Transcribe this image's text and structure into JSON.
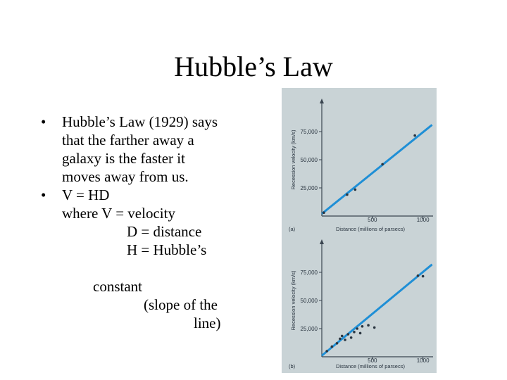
{
  "slide": {
    "title": "Hubble’s Law",
    "bullet1_lines": [
      "Hubble’s Law (1929) says",
      "that the farther away a",
      "galaxy is the faster it",
      "moves away from us."
    ],
    "bullet2_lines": [
      "V = HD"
    ],
    "defs": {
      "where": "where V = velocity",
      "d": "D = distance",
      "h": "H = Hubble’s",
      "const1": "constant",
      "const2": "(slope of the",
      "const3": "line)"
    },
    "bullet_glyph": "•"
  },
  "colors": {
    "figure_bg": "#c9d3d6",
    "fit_line": "#1f8fd6",
    "points": "#2a3540",
    "axis": "#3a4550"
  },
  "chart_data": [
    {
      "type": "scatter",
      "panel_label": "(a)",
      "xlabel": "Distance (millions of parsecs)",
      "ylabel": "Recession velocity (km/s)",
      "xlim": [
        0,
        1100
      ],
      "ylim": [
        0,
        100000
      ],
      "xticks": [
        500,
        1000
      ],
      "xtick_labels": [
        "500",
        "1000"
      ],
      "yticks": [
        25000,
        50000,
        75000
      ],
      "ytick_labels": [
        "25,000",
        "50,000",
        "75,000"
      ],
      "grid": false,
      "fit_line": {
        "x": [
          0,
          1090
        ],
        "y": [
          2000,
          81000
        ]
      },
      "points": [
        {
          "x": 20,
          "y": 3000
        },
        {
          "x": 250,
          "y": 19000
        },
        {
          "x": 330,
          "y": 23500
        },
        {
          "x": 600,
          "y": 46000
        },
        {
          "x": 920,
          "y": 71500
        }
      ]
    },
    {
      "type": "scatter",
      "panel_label": "(b)",
      "xlabel": "Distance (millions of parsecs)",
      "ylabel": "Recession velocity (km/s)",
      "xlim": [
        0,
        1100
      ],
      "ylim": [
        0,
        100000
      ],
      "xticks": [
        500,
        1000
      ],
      "xtick_labels": [
        "500",
        "1000"
      ],
      "yticks": [
        25000,
        50000,
        75000
      ],
      "ytick_labels": [
        "25,000",
        "50,000",
        "75,000"
      ],
      "grid": false,
      "fit_line": {
        "x": [
          0,
          1090
        ],
        "y": [
          1000,
          82000
        ]
      },
      "points": [
        {
          "x": 50,
          "y": 5000
        },
        {
          "x": 100,
          "y": 9000
        },
        {
          "x": 150,
          "y": 12000
        },
        {
          "x": 180,
          "y": 16000
        },
        {
          "x": 200,
          "y": 18500
        },
        {
          "x": 230,
          "y": 15000
        },
        {
          "x": 260,
          "y": 20000
        },
        {
          "x": 290,
          "y": 17000
        },
        {
          "x": 320,
          "y": 22000
        },
        {
          "x": 350,
          "y": 25000
        },
        {
          "x": 380,
          "y": 21000
        },
        {
          "x": 400,
          "y": 27000
        },
        {
          "x": 460,
          "y": 28000
        },
        {
          "x": 520,
          "y": 26000
        },
        {
          "x": 950,
          "y": 72000
        },
        {
          "x": 1000,
          "y": 71500
        }
      ]
    }
  ]
}
